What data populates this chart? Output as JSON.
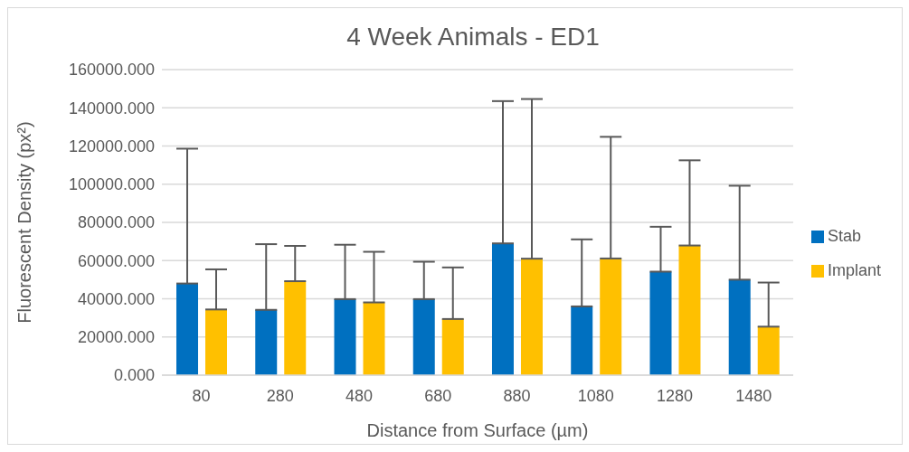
{
  "chart_data": {
    "type": "bar",
    "title": "4 Week Animals - ED1",
    "xlabel": "Distance from Surface (µm)",
    "ylabel": "Fluorescent Density (px²)",
    "categories": [
      "80",
      "280",
      "480",
      "680",
      "880",
      "1080",
      "1280",
      "1480"
    ],
    "series": [
      {
        "name": "Stab",
        "color": "#0070c0",
        "values": [
          48000,
          34200,
          39800,
          39800,
          69000,
          36000,
          54200,
          50000
        ],
        "errors": [
          [
            48000,
            118600
          ],
          [
            34200,
            68600
          ],
          [
            39800,
            68300
          ],
          [
            39800,
            59400
          ],
          [
            69000,
            143500
          ],
          [
            36000,
            71100
          ],
          [
            54200,
            77700
          ],
          [
            50000,
            99200
          ]
        ]
      },
      {
        "name": "Implant",
        "color": "#ffc000",
        "values": [
          34400,
          49200,
          38100,
          29400,
          61000,
          61100,
          67900,
          25400
        ],
        "errors": [
          [
            34400,
            55400
          ],
          [
            49200,
            67700
          ],
          [
            38100,
            64600
          ],
          [
            29400,
            56400
          ],
          [
            61000,
            144600
          ],
          [
            61100,
            124800
          ],
          [
            67900,
            112500
          ],
          [
            25400,
            48500
          ]
        ]
      }
    ],
    "ylim": [
      0,
      160000
    ],
    "yticks": [
      {
        "value": 0,
        "label": "0.000"
      },
      {
        "value": 20000,
        "label": "20000.000"
      },
      {
        "value": 40000,
        "label": "40000.000"
      },
      {
        "value": 60000,
        "label": "60000.000"
      },
      {
        "value": 80000,
        "label": "80000.000"
      },
      {
        "value": 100000,
        "label": "100000.000"
      },
      {
        "value": 120000,
        "label": "120000.000"
      },
      {
        "value": 140000,
        "label": "140000.000"
      },
      {
        "value": 160000,
        "label": "160000.000"
      }
    ],
    "grid": "y",
    "legend": "right"
  }
}
